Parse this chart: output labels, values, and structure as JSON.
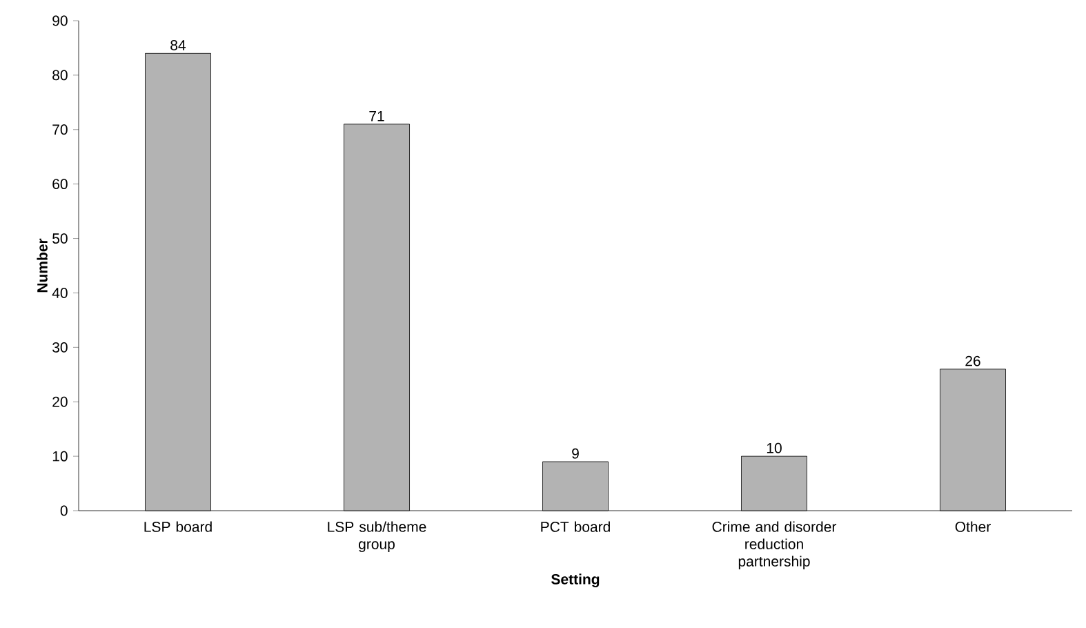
{
  "chart_data": {
    "type": "bar",
    "xlabel": "Setting",
    "ylabel": "Number",
    "categories": [
      "LSP board",
      "LSP sub/theme group",
      "PCT board",
      "Crime and disorder reduction partnership",
      "Other"
    ],
    "values": [
      84,
      71,
      9,
      10,
      26
    ],
    "color": "#b3b3b3",
    "ylim": [
      0,
      90
    ],
    "yticks": [
      0,
      10,
      20,
      30,
      40,
      50,
      60,
      70,
      80,
      90
    ],
    "grid": false,
    "data_labels": true
  }
}
